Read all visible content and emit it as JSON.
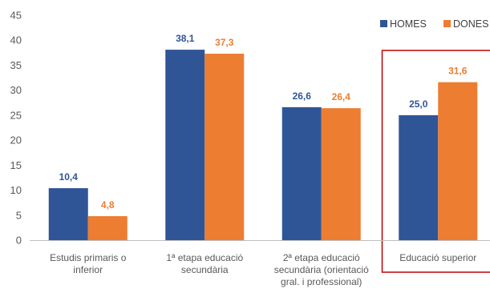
{
  "chart_data": {
    "type": "bar",
    "title": "",
    "xlabel": "",
    "ylabel": "",
    "ylim": [
      0,
      45
    ],
    "yticks": [
      0,
      5,
      10,
      15,
      20,
      25,
      30,
      35,
      40,
      45
    ],
    "grid": false,
    "legend_position": "top-right",
    "categories": [
      [
        "Estudis primaris o",
        "inferior"
      ],
      [
        "1ª etapa educació",
        "secundària"
      ],
      [
        "2ª etapa educació",
        "secundària (orientació",
        "gral. i professional)"
      ],
      [
        "Educació superior"
      ]
    ],
    "series": [
      {
        "name": "HOMES",
        "color": "#2F5597",
        "values": [
          10.4,
          38.1,
          26.6,
          25.0
        ],
        "labels": [
          "10,4",
          "38,1",
          "26,6",
          "25,0"
        ]
      },
      {
        "name": "DONES",
        "color": "#ED7D31",
        "values": [
          4.8,
          37.3,
          26.4,
          31.6
        ],
        "labels": [
          "4,8",
          "37,3",
          "26,4",
          "31,6"
        ]
      }
    ],
    "highlight": {
      "category_index": 3,
      "style": "box",
      "color": "#C00000"
    },
    "colors": {
      "axis": "#BFBFBF",
      "text": "#595959"
    }
  }
}
